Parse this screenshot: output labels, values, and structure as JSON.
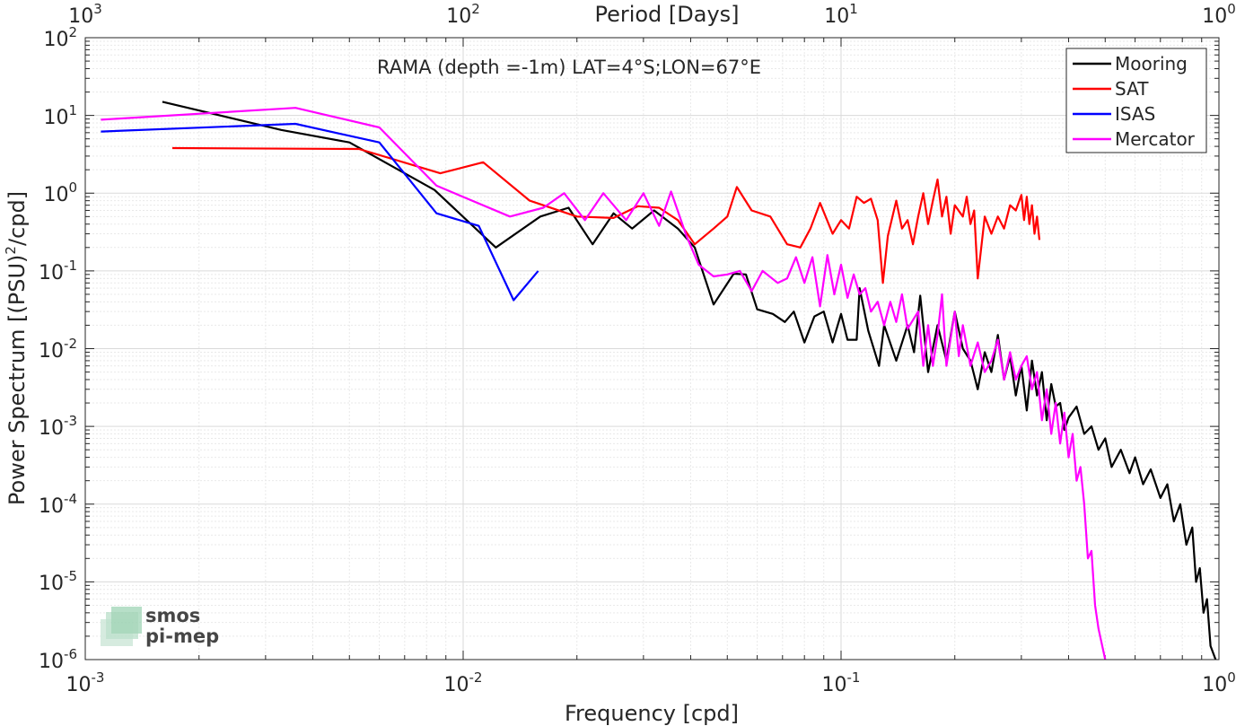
{
  "chart_data": {
    "type": "line",
    "title": "RAMA (depth =-1m) LAT=4°S;LON=67°E",
    "xlabel": "Frequency [cpd]",
    "ylabel": "Power Spectrum [(PSU)",
    "ylabel_sup": "2",
    "ylabel_tail": "/cpd]",
    "top_xlabel": "Period [Days]",
    "xscale": "log",
    "yscale": "log",
    "xlim": [
      0.001,
      1
    ],
    "ylim": [
      1e-06,
      100
    ],
    "grid": true,
    "legend_position": "top-right",
    "x_ticks": [
      {
        "base": "10",
        "exp": "-3"
      },
      {
        "base": "10",
        "exp": "-2"
      },
      {
        "base": "10",
        "exp": "-1"
      },
      {
        "base": "10",
        "exp": "0"
      }
    ],
    "top_ticks": [
      {
        "base": "10",
        "exp": "3"
      },
      {
        "base": "10",
        "exp": "2"
      },
      {
        "base": "10",
        "exp": "1"
      },
      {
        "base": "10",
        "exp": "0"
      }
    ],
    "y_ticks": [
      {
        "base": "10",
        "exp": "2"
      },
      {
        "base": "10",
        "exp": "1"
      },
      {
        "base": "10",
        "exp": "0"
      },
      {
        "base": "10",
        "exp": "-1"
      },
      {
        "base": "10",
        "exp": "-2"
      },
      {
        "base": "10",
        "exp": "-3"
      },
      {
        "base": "10",
        "exp": "-4"
      },
      {
        "base": "10",
        "exp": "-5"
      },
      {
        "base": "10",
        "exp": "-6"
      }
    ],
    "series": [
      {
        "name": "Mooring",
        "color": "#000000",
        "points": [
          [
            0.0016,
            15
          ],
          [
            0.0033,
            6.5
          ],
          [
            0.005,
            4.5
          ],
          [
            0.0084,
            1.1
          ],
          [
            0.0122,
            0.2
          ],
          [
            0.016,
            0.5
          ],
          [
            0.019,
            0.65
          ],
          [
            0.022,
            0.22
          ],
          [
            0.025,
            0.55
          ],
          [
            0.028,
            0.35
          ],
          [
            0.032,
            0.6
          ],
          [
            0.037,
            0.35
          ],
          [
            0.041,
            0.2
          ],
          [
            0.046,
            0.037
          ],
          [
            0.052,
            0.092
          ],
          [
            0.056,
            0.09
          ],
          [
            0.06,
            0.032
          ],
          [
            0.066,
            0.028
          ],
          [
            0.071,
            0.022
          ],
          [
            0.075,
            0.03
          ],
          [
            0.08,
            0.012
          ],
          [
            0.085,
            0.026
          ],
          [
            0.09,
            0.03
          ],
          [
            0.095,
            0.012
          ],
          [
            0.1,
            0.028
          ],
          [
            0.104,
            0.013
          ],
          [
            0.11,
            0.013
          ],
          [
            0.112,
            0.06
          ],
          [
            0.118,
            0.017
          ],
          [
            0.126,
            0.006
          ],
          [
            0.13,
            0.02
          ],
          [
            0.14,
            0.007
          ],
          [
            0.15,
            0.02
          ],
          [
            0.156,
            0.009
          ],
          [
            0.162,
            0.048
          ],
          [
            0.17,
            0.005
          ],
          [
            0.18,
            0.02
          ],
          [
            0.19,
            0.007
          ],
          [
            0.2,
            0.03
          ],
          [
            0.21,
            0.01
          ],
          [
            0.22,
            0.007
          ],
          [
            0.23,
            0.003
          ],
          [
            0.24,
            0.009
          ],
          [
            0.25,
            0.005
          ],
          [
            0.26,
            0.015
          ],
          [
            0.27,
            0.004
          ],
          [
            0.28,
            0.008
          ],
          [
            0.29,
            0.0025
          ],
          [
            0.3,
            0.006
          ],
          [
            0.31,
            0.0016
          ],
          [
            0.32,
            0.007
          ],
          [
            0.33,
            0.0025
          ],
          [
            0.34,
            0.005
          ],
          [
            0.35,
            0.0012
          ],
          [
            0.36,
            0.0035
          ],
          [
            0.37,
            0.0018
          ],
          [
            0.38,
            0.002
          ],
          [
            0.39,
            0.0009
          ],
          [
            0.4,
            0.0013
          ],
          [
            0.42,
            0.0018
          ],
          [
            0.44,
            0.0008
          ],
          [
            0.46,
            0.001
          ],
          [
            0.48,
            0.0005
          ],
          [
            0.5,
            0.0007
          ],
          [
            0.52,
            0.0003
          ],
          [
            0.55,
            0.0005
          ],
          [
            0.58,
            0.00025
          ],
          [
            0.6,
            0.0004
          ],
          [
            0.63,
            0.00018
          ],
          [
            0.66,
            0.00028
          ],
          [
            0.7,
            0.00012
          ],
          [
            0.73,
            0.00018
          ],
          [
            0.76,
            6e-05
          ],
          [
            0.79,
            0.0001
          ],
          [
            0.82,
            3e-05
          ],
          [
            0.85,
            5e-05
          ],
          [
            0.87,
            1e-05
          ],
          [
            0.89,
            1.5e-05
          ],
          [
            0.91,
            4e-06
          ],
          [
            0.93,
            6e-06
          ],
          [
            0.95,
            1.5e-06
          ],
          [
            0.98,
            1e-06
          ]
        ]
      },
      {
        "name": "SAT",
        "color": "#ff0000",
        "points": [
          [
            0.0017,
            3.8
          ],
          [
            0.0053,
            3.7
          ],
          [
            0.0087,
            1.8
          ],
          [
            0.0113,
            2.5
          ],
          [
            0.015,
            0.8
          ],
          [
            0.02,
            0.5
          ],
          [
            0.025,
            0.48
          ],
          [
            0.029,
            0.68
          ],
          [
            0.033,
            0.65
          ],
          [
            0.037,
            0.45
          ],
          [
            0.041,
            0.22
          ],
          [
            0.046,
            0.35
          ],
          [
            0.05,
            0.5
          ],
          [
            0.053,
            1.2
          ],
          [
            0.058,
            0.6
          ],
          [
            0.065,
            0.5
          ],
          [
            0.072,
            0.22
          ],
          [
            0.078,
            0.2
          ],
          [
            0.083,
            0.35
          ],
          [
            0.088,
            0.75
          ],
          [
            0.095,
            0.3
          ],
          [
            0.1,
            0.45
          ],
          [
            0.105,
            0.35
          ],
          [
            0.11,
            0.9
          ],
          [
            0.115,
            0.75
          ],
          [
            0.12,
            0.85
          ],
          [
            0.125,
            0.45
          ],
          [
            0.129,
            0.07
          ],
          [
            0.133,
            0.28
          ],
          [
            0.14,
            0.8
          ],
          [
            0.145,
            0.35
          ],
          [
            0.15,
            0.45
          ],
          [
            0.155,
            0.22
          ],
          [
            0.16,
            0.5
          ],
          [
            0.165,
            1.0
          ],
          [
            0.17,
            0.4
          ],
          [
            0.175,
            0.8
          ],
          [
            0.18,
            1.5
          ],
          [
            0.185,
            0.5
          ],
          [
            0.19,
            0.9
          ],
          [
            0.195,
            0.3
          ],
          [
            0.2,
            0.7
          ],
          [
            0.21,
            0.5
          ],
          [
            0.215,
            0.9
          ],
          [
            0.22,
            0.4
          ],
          [
            0.225,
            0.6
          ],
          [
            0.23,
            0.08
          ],
          [
            0.24,
            0.5
          ],
          [
            0.25,
            0.3
          ],
          [
            0.26,
            0.5
          ],
          [
            0.27,
            0.35
          ],
          [
            0.28,
            0.7
          ],
          [
            0.29,
            0.6
          ],
          [
            0.3,
            0.95
          ],
          [
            0.305,
            0.45
          ],
          [
            0.31,
            0.9
          ],
          [
            0.315,
            0.4
          ],
          [
            0.32,
            0.7
          ],
          [
            0.325,
            0.3
          ],
          [
            0.33,
            0.5
          ],
          [
            0.335,
            0.25
          ]
        ]
      },
      {
        "name": "ISAS",
        "color": "#0000ff",
        "points": [
          [
            0.0011,
            6.2
          ],
          [
            0.0036,
            7.8
          ],
          [
            0.006,
            4.5
          ],
          [
            0.0085,
            0.55
          ],
          [
            0.011,
            0.38
          ],
          [
            0.0136,
            0.042
          ],
          [
            0.0158,
            0.1
          ]
        ]
      },
      {
        "name": "Mercator",
        "color": "#ff00ff",
        "points": [
          [
            0.0011,
            8.8
          ],
          [
            0.0036,
            12.5
          ],
          [
            0.006,
            7.0
          ],
          [
            0.0085,
            1.25
          ],
          [
            0.0133,
            0.5
          ],
          [
            0.0163,
            0.65
          ],
          [
            0.0185,
            1.0
          ],
          [
            0.021,
            0.45
          ],
          [
            0.0235,
            1.0
          ],
          [
            0.027,
            0.45
          ],
          [
            0.03,
            1.0
          ],
          [
            0.033,
            0.38
          ],
          [
            0.0355,
            1.05
          ],
          [
            0.039,
            0.28
          ],
          [
            0.042,
            0.12
          ],
          [
            0.046,
            0.085
          ],
          [
            0.05,
            0.09
          ],
          [
            0.054,
            0.1
          ],
          [
            0.058,
            0.055
          ],
          [
            0.062,
            0.1
          ],
          [
            0.068,
            0.07
          ],
          [
            0.072,
            0.08
          ],
          [
            0.076,
            0.15
          ],
          [
            0.08,
            0.07
          ],
          [
            0.084,
            0.15
          ],
          [
            0.088,
            0.035
          ],
          [
            0.092,
            0.16
          ],
          [
            0.096,
            0.05
          ],
          [
            0.1,
            0.12
          ],
          [
            0.104,
            0.045
          ],
          [
            0.108,
            0.09
          ],
          [
            0.112,
            0.05
          ],
          [
            0.116,
            0.06
          ],
          [
            0.12,
            0.03
          ],
          [
            0.125,
            0.04
          ],
          [
            0.13,
            0.02
          ],
          [
            0.135,
            0.04
          ],
          [
            0.14,
            0.022
          ],
          [
            0.145,
            0.05
          ],
          [
            0.15,
            0.018
          ],
          [
            0.16,
            0.03
          ],
          [
            0.165,
            0.006
          ],
          [
            0.17,
            0.02
          ],
          [
            0.175,
            0.006
          ],
          [
            0.18,
            0.015
          ],
          [
            0.185,
            0.05
          ],
          [
            0.19,
            0.006
          ],
          [
            0.2,
            0.03
          ],
          [
            0.205,
            0.008
          ],
          [
            0.21,
            0.02
          ],
          [
            0.22,
            0.006
          ],
          [
            0.23,
            0.012
          ],
          [
            0.24,
            0.005
          ],
          [
            0.25,
            0.007
          ],
          [
            0.26,
            0.013
          ],
          [
            0.27,
            0.004
          ],
          [
            0.28,
            0.009
          ],
          [
            0.29,
            0.004
          ],
          [
            0.3,
            0.006
          ],
          [
            0.31,
            0.008
          ],
          [
            0.32,
            0.003
          ],
          [
            0.33,
            0.005
          ],
          [
            0.34,
            0.0012
          ],
          [
            0.35,
            0.003
          ],
          [
            0.36,
            0.0008
          ],
          [
            0.37,
            0.002
          ],
          [
            0.38,
            0.0006
          ],
          [
            0.39,
            0.0015
          ],
          [
            0.4,
            0.0004
          ],
          [
            0.41,
            0.0008
          ],
          [
            0.42,
            0.0002
          ],
          [
            0.43,
            0.0003
          ],
          [
            0.44,
            0.0001
          ],
          [
            0.45,
            2e-05
          ],
          [
            0.46,
            2.5e-05
          ],
          [
            0.47,
            5e-06
          ],
          [
            0.48,
            2.5e-06
          ],
          [
            0.5,
            1e-06
          ]
        ]
      }
    ]
  },
  "watermark": {
    "text_line1": "smos",
    "text_line2": "pi-mep",
    "color": "#7dbf9a"
  }
}
